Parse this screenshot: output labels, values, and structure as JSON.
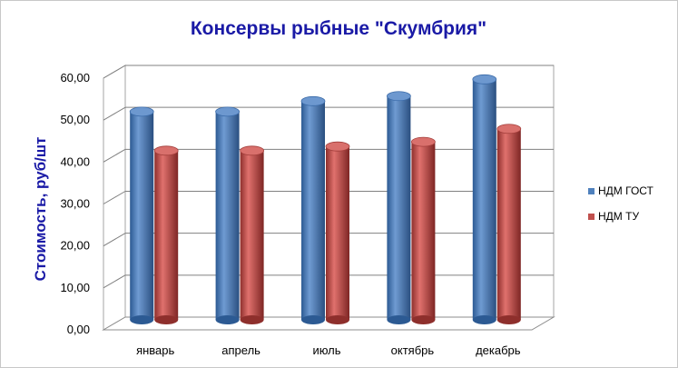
{
  "colors": {
    "series_1": "#4f81bd",
    "series_2": "#c0504d",
    "title": "#1a1aa6",
    "grid": "#808080"
  },
  "chart_data": {
    "type": "bar",
    "style": "3d-cylinder",
    "title": "Консервы рыбные \"Скумбрия\"",
    "xlabel": "",
    "ylabel": "Стоимость, руб/шт",
    "categories": [
      "январь",
      "апрель",
      "июль",
      "октябрь",
      "декабрь"
    ],
    "series": [
      {
        "name": "НДМ ГОСТ",
        "values": [
          50.5,
          50.5,
          53.0,
          54.2,
          58.2
        ]
      },
      {
        "name": "НДМ ТУ",
        "values": [
          41.2,
          41.2,
          42.2,
          43.3,
          46.4
        ]
      }
    ],
    "ylim": [
      0,
      60
    ],
    "yticks": [
      "0,00",
      "10,00",
      "20,00",
      "30,00",
      "40,00",
      "50,00",
      "60,00"
    ],
    "grid": true,
    "legend_position": "right"
  }
}
